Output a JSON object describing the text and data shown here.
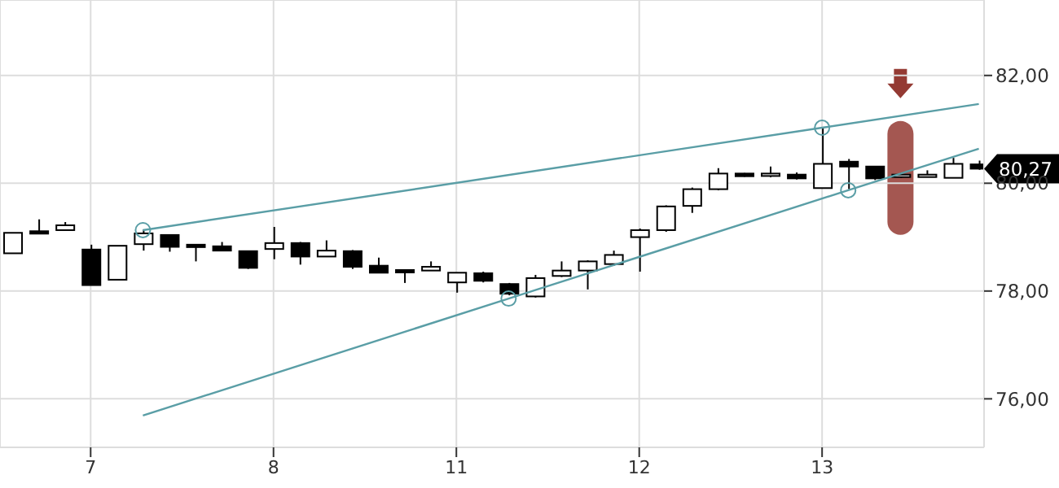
{
  "chart_data": {
    "type": "candlestick",
    "categories": [
      null,
      null,
      null,
      "7",
      null,
      null,
      null,
      null,
      null,
      null,
      "8",
      null,
      null,
      null,
      null,
      null,
      null,
      "11",
      null,
      null,
      null,
      null,
      null,
      null,
      "12",
      null,
      null,
      null,
      null,
      null,
      null,
      "13",
      null,
      null,
      null,
      null,
      null,
      null
    ],
    "ohlc": [
      [
        78.7,
        79.08,
        78.7,
        79.08
      ],
      [
        79.11,
        79.33,
        79.08,
        79.09
      ],
      [
        79.13,
        79.28,
        79.13,
        79.22
      ],
      [
        78.77,
        78.86,
        78.11,
        78.11
      ],
      [
        78.21,
        78.84,
        78.21,
        78.84
      ],
      [
        78.87,
        79.14,
        78.75,
        79.07
      ],
      [
        79.04,
        79.04,
        78.73,
        78.82
      ],
      [
        78.86,
        78.86,
        78.55,
        78.82
      ],
      [
        78.83,
        78.91,
        78.75,
        78.75
      ],
      [
        78.74,
        78.74,
        78.41,
        78.43
      ],
      [
        78.78,
        79.19,
        78.59,
        78.89
      ],
      [
        78.89,
        78.91,
        78.49,
        78.64
      ],
      [
        78.64,
        78.94,
        78.64,
        78.75
      ],
      [
        78.74,
        78.76,
        78.41,
        78.45
      ],
      [
        78.47,
        78.62,
        78.33,
        78.34
      ],
      [
        78.39,
        78.4,
        78.15,
        78.38
      ],
      [
        78.38,
        78.55,
        78.38,
        78.45
      ],
      [
        78.16,
        78.34,
        77.97,
        78.34
      ],
      [
        78.33,
        78.36,
        78.16,
        78.19
      ],
      [
        78.13,
        78.15,
        77.92,
        77.95
      ],
      [
        77.9,
        78.3,
        77.88,
        78.24
      ],
      [
        78.28,
        78.55,
        78.26,
        78.38
      ],
      [
        78.38,
        78.57,
        78.03,
        78.55
      ],
      [
        78.5,
        78.75,
        78.47,
        78.67
      ],
      [
        79.0,
        79.16,
        78.36,
        79.13
      ],
      [
        79.13,
        79.59,
        79.1,
        79.57
      ],
      [
        79.58,
        79.92,
        79.45,
        79.89
      ],
      [
        79.89,
        80.28,
        79.87,
        80.18
      ],
      [
        80.18,
        80.19,
        80.12,
        80.13
      ],
      [
        80.17,
        80.31,
        80.11,
        80.18
      ],
      [
        80.16,
        80.2,
        80.07,
        80.09
      ],
      [
        79.91,
        81.03,
        79.91,
        80.36
      ],
      [
        80.4,
        80.45,
        79.89,
        80.31
      ],
      [
        80.31,
        80.31,
        80.06,
        80.09
      ],
      [
        80.15,
        80.2,
        80.1,
        80.16
      ],
      [
        80.15,
        80.24,
        80.15,
        80.16
      ],
      [
        80.1,
        80.47,
        80.1,
        80.36
      ],
      [
        80.35,
        80.42,
        80.25,
        80.27
      ]
    ],
    "series": [
      {
        "type": "line",
        "color": "#5a9ea6",
        "marker": "none",
        "values": [
          null,
          null,
          null,
          null,
          null,
          79.13,
          null,
          null,
          null,
          null,
          null,
          null,
          null,
          null,
          null,
          null,
          null,
          null,
          null,
          null,
          null,
          null,
          null,
          null,
          null,
          null,
          null,
          null,
          null,
          null,
          null,
          81.03,
          null,
          null,
          null,
          null,
          null,
          81.47
        ]
      },
      {
        "type": "line",
        "color": "#5a9ea6",
        "marker": "none",
        "values": [
          null,
          null,
          null,
          null,
          null,
          75.69,
          null,
          null,
          null,
          null,
          null,
          null,
          null,
          null,
          null,
          null,
          null,
          null,
          null,
          77.86,
          null,
          null,
          null,
          null,
          null,
          null,
          null,
          null,
          null,
          null,
          null,
          null,
          79.87,
          null,
          null,
          null,
          null,
          80.64
        ]
      },
      {
        "type": "scatter",
        "color": "#5a9ea6",
        "marker": "circle",
        "values": [
          null,
          null,
          null,
          null,
          null,
          79.13,
          null,
          null,
          null,
          null,
          null,
          null,
          null,
          null,
          null,
          null,
          null,
          null,
          null,
          77.86,
          null,
          null,
          null,
          null,
          null,
          null,
          null,
          null,
          null,
          null,
          null,
          81.03,
          79.87,
          null,
          null,
          null,
          null,
          null
        ]
      }
    ],
    "ylim": [
      75.1,
      83.4
    ],
    "yticks": [
      {
        "value": 76,
        "label": "76,00"
      },
      {
        "value": 78,
        "label": "78,00"
      },
      {
        "value": 80,
        "label": "80,00"
      },
      {
        "value": 82,
        "label": "82,00"
      }
    ],
    "grid": true,
    "annotations": [
      "80,27"
    ]
  }
}
